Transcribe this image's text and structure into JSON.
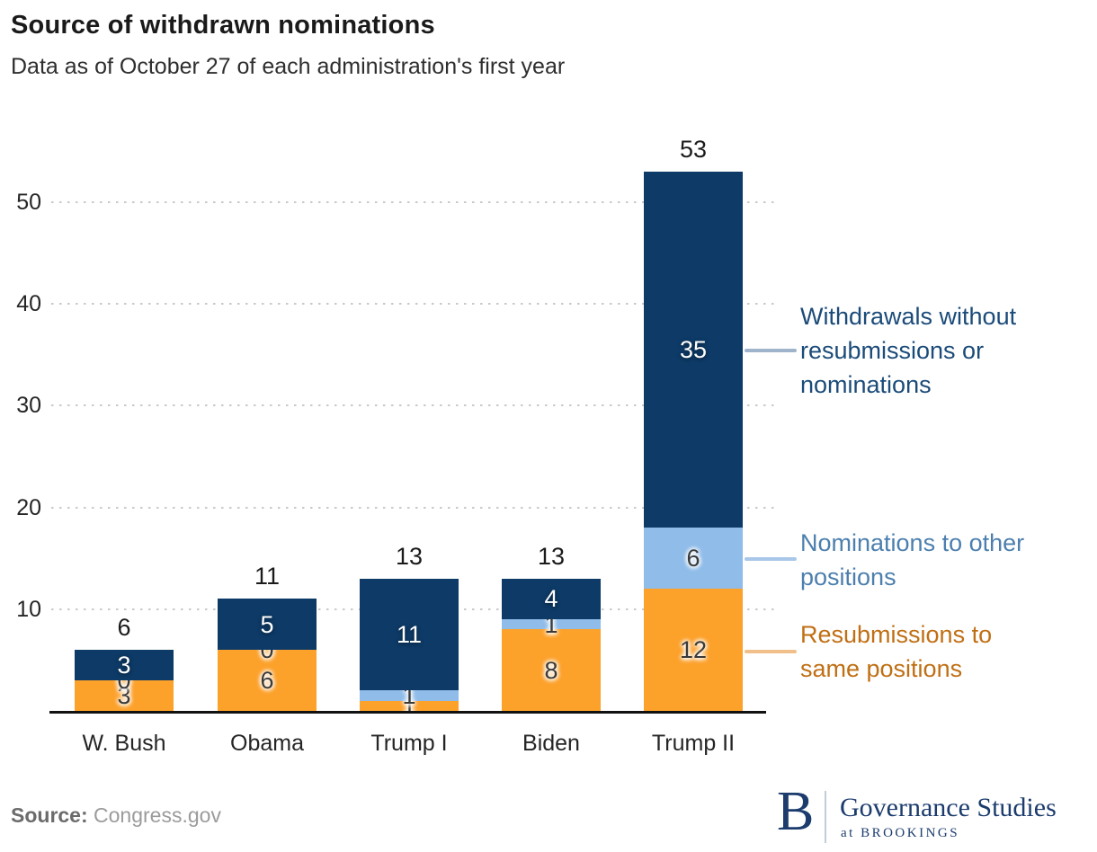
{
  "header": {
    "title": "Source of withdrawn nominations",
    "subtitle": "Data as of October 27 of each administration's first year"
  },
  "chart_data": {
    "type": "bar",
    "stacked": true,
    "categories": [
      "W. Bush",
      "Obama",
      "Trump I",
      "Biden",
      "Trump II"
    ],
    "series": [
      {
        "name": "Resubmissions to same positions",
        "color": "#FCA12A",
        "values": [
          3,
          6,
          1,
          8,
          12
        ],
        "label_style": "on-light"
      },
      {
        "name": "Nominations to other positions",
        "color": "#8FBCE9",
        "values": [
          0,
          0,
          1,
          1,
          6
        ],
        "label_style": "on-light"
      },
      {
        "name": "Withdrawals without resubmissions or nominations",
        "color": "#0D3A66",
        "values": [
          3,
          5,
          11,
          4,
          35
        ],
        "label_style": "on-dark"
      }
    ],
    "totals": [
      6,
      11,
      13,
      13,
      53
    ],
    "title": "Source of withdrawn nominations",
    "xlabel": "",
    "ylabel": "",
    "ylim": [
      0,
      53
    ],
    "yticks": [
      10,
      20,
      30,
      40,
      50
    ],
    "grid": "horizontal-dotted",
    "legend_position": "right-annotations"
  },
  "annotations": [
    {
      "lines": [
        "Withdrawals without",
        "resubmissions or",
        "nominations"
      ],
      "text_color": "#1B4B79",
      "line_color": "#9FB4CA"
    },
    {
      "lines": [
        "Nominations to other",
        "positions"
      ],
      "text_color": "#4C7FAE",
      "line_color": "#A9C7E9"
    },
    {
      "lines": [
        "Resubmissions to",
        "same positions"
      ],
      "text_color": "#C06F14",
      "line_color": "#F1C08A"
    }
  ],
  "footer": {
    "source_label": "Source:",
    "source_value": "Congress.gov",
    "logo": {
      "initial": "B",
      "org": "Governance Studies",
      "tagline": "at BROOKINGS",
      "color": "#1C3C6D"
    }
  }
}
